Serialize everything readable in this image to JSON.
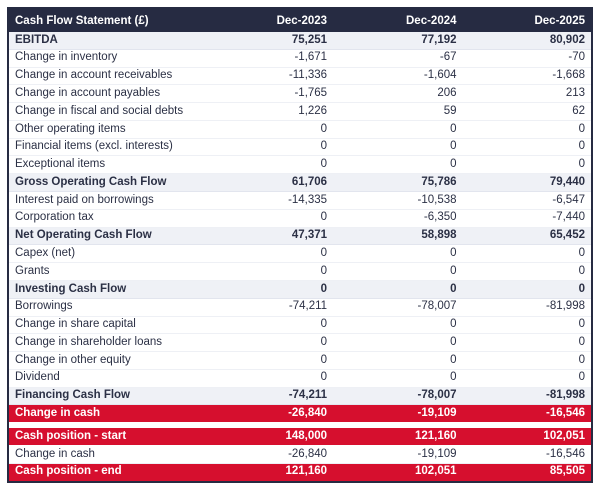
{
  "title": "Cash Flow Statement (£)",
  "colors": {
    "header_bg": "#262b42",
    "header_text": "#ffffff",
    "subtotal_bg": "#eff1f6",
    "highlight_bg": "#d60f2e",
    "highlight_text": "#ffffff",
    "body_text": "#2b3045",
    "table_border": "#262b42"
  },
  "chart_data": {
    "type": "table",
    "title": "Cash Flow Statement (£)",
    "columns": [
      "Dec-2023",
      "Dec-2024",
      "Dec-2025"
    ],
    "rows": [
      {
        "label": "EBITDA",
        "values": [
          "75,251",
          "77,192",
          "80,902"
        ],
        "style": "subtotal"
      },
      {
        "label": "Change in inventory",
        "values": [
          "-1,671",
          "-67",
          "-70"
        ],
        "style": "normal"
      },
      {
        "label": "Change in account receivables",
        "values": [
          "-11,336",
          "-1,604",
          "-1,668"
        ],
        "style": "normal"
      },
      {
        "label": "Change in account payables",
        "values": [
          "-1,765",
          "206",
          "213"
        ],
        "style": "normal"
      },
      {
        "label": "Change in fiscal and social debts",
        "values": [
          "1,226",
          "59",
          "62"
        ],
        "style": "normal"
      },
      {
        "label": "Other operating items",
        "values": [
          "0",
          "0",
          "0"
        ],
        "style": "normal"
      },
      {
        "label": "Financial items (excl. interests)",
        "values": [
          "0",
          "0",
          "0"
        ],
        "style": "normal"
      },
      {
        "label": "Exceptional items",
        "values": [
          "0",
          "0",
          "0"
        ],
        "style": "normal"
      },
      {
        "label": "Gross Operating Cash Flow",
        "values": [
          "61,706",
          "75,786",
          "79,440"
        ],
        "style": "subtotal"
      },
      {
        "label": "Interest paid on borrowings",
        "values": [
          "-14,335",
          "-10,538",
          "-6,547"
        ],
        "style": "normal"
      },
      {
        "label": "Corporation tax",
        "values": [
          "0",
          "-6,350",
          "-7,440"
        ],
        "style": "normal"
      },
      {
        "label": "Net Operating Cash Flow",
        "values": [
          "47,371",
          "58,898",
          "65,452"
        ],
        "style": "subtotal"
      },
      {
        "label": "Capex (net)",
        "values": [
          "0",
          "0",
          "0"
        ],
        "style": "normal"
      },
      {
        "label": "Grants",
        "values": [
          "0",
          "0",
          "0"
        ],
        "style": "normal"
      },
      {
        "label": "Investing Cash Flow",
        "values": [
          "0",
          "0",
          "0"
        ],
        "style": "subtotal"
      },
      {
        "label": "Borrowings",
        "values": [
          "-74,211",
          "-78,007",
          "-81,998"
        ],
        "style": "normal"
      },
      {
        "label": "Change in share capital",
        "values": [
          "0",
          "0",
          "0"
        ],
        "style": "normal"
      },
      {
        "label": "Change in shareholder loans",
        "values": [
          "0",
          "0",
          "0"
        ],
        "style": "normal"
      },
      {
        "label": "Change in other equity",
        "values": [
          "0",
          "0",
          "0"
        ],
        "style": "normal"
      },
      {
        "label": "Dividend",
        "values": [
          "0",
          "0",
          "0"
        ],
        "style": "normal"
      },
      {
        "label": "Financing Cash Flow",
        "values": [
          "-74,211",
          "-78,007",
          "-81,998"
        ],
        "style": "subtotal"
      },
      {
        "label": "Change in cash",
        "values": [
          "-26,840",
          "-19,109",
          "-16,546"
        ],
        "style": "redrow"
      },
      {
        "label": "",
        "values": [],
        "style": "spacer"
      },
      {
        "label": "Cash position - start",
        "values": [
          "148,000",
          "121,160",
          "102,051"
        ],
        "style": "redrow"
      },
      {
        "label": "Change in cash",
        "values": [
          "-26,840",
          "-19,109",
          "-16,546"
        ],
        "style": "normal"
      },
      {
        "label": "Cash position - end",
        "values": [
          "121,160",
          "102,051",
          "85,505"
        ],
        "style": "redrow"
      }
    ]
  }
}
